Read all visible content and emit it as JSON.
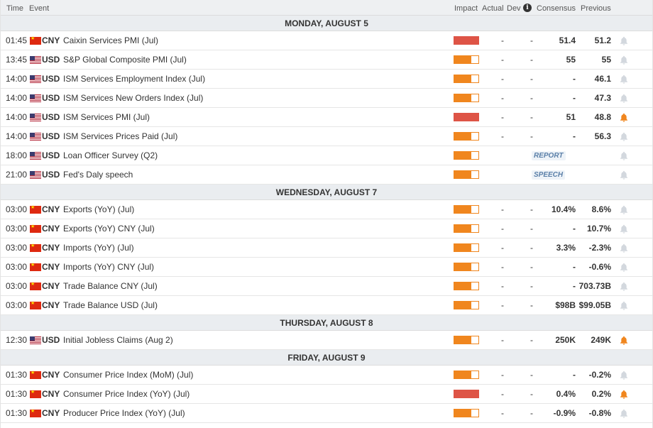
{
  "header": {
    "time": "Time",
    "event": "Event",
    "impact": "Impact",
    "actual": "Actual",
    "dev": "Dev",
    "info_icon": "i",
    "consensus": "Consensus",
    "previous": "Previous"
  },
  "days": [
    {
      "label": "MONDAY, AUGUST 5",
      "events": [
        {
          "time": "01:45",
          "cur": "CNY",
          "name": "Caixin Services PMI (Jul)",
          "impact": "high",
          "actual": "-",
          "dev": "-",
          "cons": "51.4",
          "prev": "51.2",
          "alert": false
        },
        {
          "time": "13:45",
          "cur": "USD",
          "name": "S&P Global Composite PMI (Jul)",
          "impact": "med",
          "actual": "-",
          "dev": "-",
          "cons": "55",
          "prev": "55",
          "alert": false
        },
        {
          "time": "14:00",
          "cur": "USD",
          "name": "ISM Services Employment Index (Jul)",
          "impact": "med",
          "actual": "-",
          "dev": "-",
          "cons": "-",
          "prev": "46.1",
          "alert": false
        },
        {
          "time": "14:00",
          "cur": "USD",
          "name": "ISM Services New Orders Index (Jul)",
          "impact": "med",
          "actual": "-",
          "dev": "-",
          "cons": "-",
          "prev": "47.3",
          "alert": false
        },
        {
          "time": "14:00",
          "cur": "USD",
          "name": "ISM Services PMI (Jul)",
          "impact": "high",
          "actual": "-",
          "dev": "-",
          "cons": "51",
          "prev": "48.8",
          "alert": true
        },
        {
          "time": "14:00",
          "cur": "USD",
          "name": "ISM Services Prices Paid (Jul)",
          "impact": "med",
          "actual": "-",
          "dev": "-",
          "cons": "-",
          "prev": "56.3",
          "alert": false
        },
        {
          "time": "18:00",
          "cur": "USD",
          "name": "Loan Officer Survey (Q2)",
          "impact": "med",
          "tag": "REPORT",
          "alert": false
        },
        {
          "time": "21:00",
          "cur": "USD",
          "name": "Fed's Daly speech",
          "impact": "med",
          "tag": "SPEECH",
          "alert": false
        }
      ]
    },
    {
      "label": "WEDNESDAY, AUGUST 7",
      "events": [
        {
          "time": "03:00",
          "cur": "CNY",
          "name": "Exports (YoY) (Jul)",
          "impact": "med",
          "actual": "-",
          "dev": "-",
          "cons": "10.4%",
          "prev": "8.6%",
          "alert": false
        },
        {
          "time": "03:00",
          "cur": "CNY",
          "name": "Exports (YoY) CNY (Jul)",
          "impact": "med",
          "actual": "-",
          "dev": "-",
          "cons": "-",
          "prev": "10.7%",
          "alert": false
        },
        {
          "time": "03:00",
          "cur": "CNY",
          "name": "Imports (YoY) (Jul)",
          "impact": "med",
          "actual": "-",
          "dev": "-",
          "cons": "3.3%",
          "prev": "-2.3%",
          "alert": false
        },
        {
          "time": "03:00",
          "cur": "CNY",
          "name": "Imports (YoY) CNY (Jul)",
          "impact": "med",
          "actual": "-",
          "dev": "-",
          "cons": "-",
          "prev": "-0.6%",
          "alert": false
        },
        {
          "time": "03:00",
          "cur": "CNY",
          "name": "Trade Balance CNY (Jul)",
          "impact": "med",
          "actual": "-",
          "dev": "-",
          "cons": "-",
          "prev": "703.73B",
          "alert": false
        },
        {
          "time": "03:00",
          "cur": "CNY",
          "name": "Trade Balance USD (Jul)",
          "impact": "med",
          "actual": "-",
          "dev": "-",
          "cons": "$98B",
          "prev": "$99.05B",
          "alert": false
        }
      ]
    },
    {
      "label": "THURSDAY, AUGUST 8",
      "events": [
        {
          "time": "12:30",
          "cur": "USD",
          "name": "Initial Jobless Claims (Aug 2)",
          "impact": "med",
          "actual": "-",
          "dev": "-",
          "cons": "250K",
          "prev": "249K",
          "alert": true
        }
      ]
    },
    {
      "label": "FRIDAY, AUGUST 9",
      "events": [
        {
          "time": "01:30",
          "cur": "CNY",
          "name": "Consumer Price Index (MoM) (Jul)",
          "impact": "med",
          "actual": "-",
          "dev": "-",
          "cons": "-",
          "prev": "-0.2%",
          "alert": false
        },
        {
          "time": "01:30",
          "cur": "CNY",
          "name": "Consumer Price Index (YoY) (Jul)",
          "impact": "high",
          "actual": "-",
          "dev": "-",
          "cons": "0.4%",
          "prev": "0.2%",
          "alert": true
        },
        {
          "time": "01:30",
          "cur": "CNY",
          "name": "Producer Price Index (YoY) (Jul)",
          "impact": "med",
          "actual": "-",
          "dev": "-",
          "cons": "-0.9%",
          "prev": "-0.8%",
          "alert": false
        }
      ]
    }
  ],
  "colors": {
    "impact_medium": "#f0861e",
    "impact_high": "#de5446",
    "bell_active": "#f0861e",
    "bell_inactive": "#d3d8de"
  },
  "icons": {
    "alert": "bell-icon",
    "info": "info-icon"
  }
}
